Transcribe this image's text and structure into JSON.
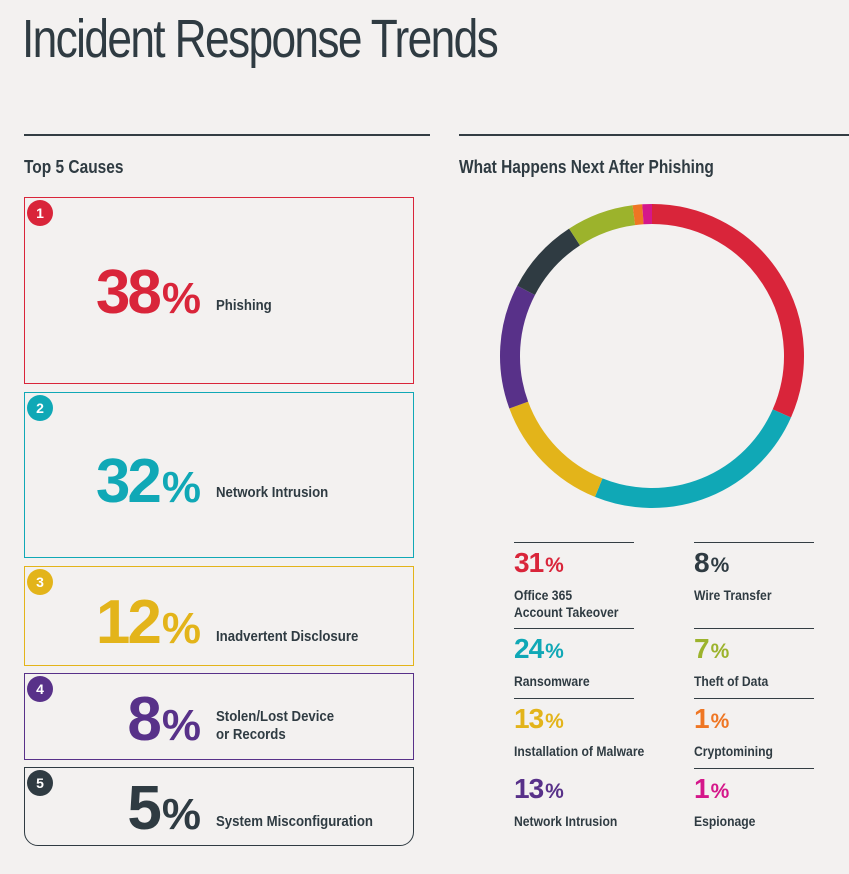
{
  "title": "Incident Response Trends",
  "left_heading": "Top 5 Causes",
  "right_heading": "What Happens Next After Phishing",
  "colors": {
    "red": "#d9253a",
    "teal": "#10a8b6",
    "gold": "#e3b41a",
    "purple": "#583189",
    "dark": "#2f3b42",
    "olive": "#9cb32c",
    "orange": "#ef7623",
    "magenta": "#d5178a"
  },
  "causes": [
    {
      "rank": "1",
      "value": 38,
      "num": "38",
      "sym": "%",
      "label": "Phishing",
      "color": "#d9253a"
    },
    {
      "rank": "2",
      "value": 32,
      "num": "32",
      "sym": "%",
      "label": "Network Intrusion",
      "color": "#10a8b6"
    },
    {
      "rank": "3",
      "value": 12,
      "num": "12",
      "sym": "%",
      "label": "Inadvertent Disclosure",
      "color": "#e3b41a"
    },
    {
      "rank": "4",
      "value": 8,
      "num": "8",
      "sym": "%",
      "label": "Stolen/Lost Device\nor Records",
      "color": "#583189"
    },
    {
      "rank": "5",
      "value": 5,
      "num": "5",
      "sym": "%",
      "label": "System Misconfiguration",
      "color": "#2f3b42"
    }
  ],
  "chart_data": {
    "type": "pie",
    "title": "What Happens Next After Phishing",
    "slices": [
      {
        "label": "Office 365\nAccount Takeover",
        "value": 31,
        "color": "#d9253a"
      },
      {
        "label": "Ransomware",
        "value": 24,
        "color": "#10a8b6"
      },
      {
        "label": "Installation of Malware",
        "value": 13,
        "color": "#e3b41a"
      },
      {
        "label": "Network Intrusion",
        "value": 13,
        "color": "#583189"
      },
      {
        "label": "Wire Transfer",
        "value": 8,
        "color": "#2f3b42"
      },
      {
        "label": "Theft of Data",
        "value": 7,
        "color": "#9cb32c"
      },
      {
        "label": "Cryptomining",
        "value": 1,
        "color": "#ef7623"
      },
      {
        "label": "Espionage",
        "value": 1,
        "color": "#d5178a"
      }
    ],
    "percent_symbol": "%"
  }
}
